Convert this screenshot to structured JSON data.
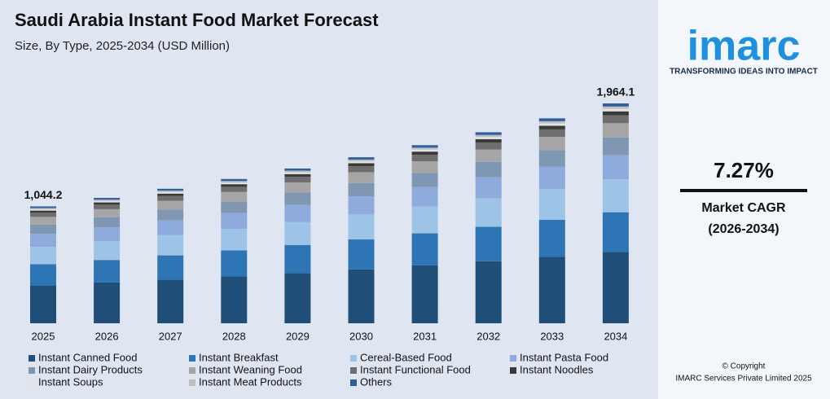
{
  "chart_data": {
    "type": "stacked-bar",
    "title": "Saudi Arabia Instant Food Market Forecast",
    "subtitle": "Size, By Type, 2025-2034 (USD Million)",
    "categories": [
      "2025",
      "2026",
      "2027",
      "2028",
      "2029",
      "2030",
      "2031",
      "2032",
      "2033",
      "2034"
    ],
    "series": [
      {
        "name": "Instant Canned Food",
        "color": "#1f4e79",
        "values": [
          339.3,
          364.0,
          390.5,
          418.9,
          449.3,
          482.0,
          517.0,
          554.6,
          595.0,
          638.3
        ]
      },
      {
        "name": "Instant Breakfast",
        "color": "#2e75b6",
        "values": [
          188.0,
          201.6,
          216.3,
          232.0,
          248.9,
          267.0,
          286.4,
          307.2,
          329.5,
          353.5
        ]
      },
      {
        "name": "Cereal-Based Food",
        "color": "#9dc3e6",
        "values": [
          156.6,
          168.0,
          180.2,
          193.3,
          207.4,
          222.5,
          238.6,
          256.0,
          274.6,
          294.6
        ]
      },
      {
        "name": "Instant Pasta Food",
        "color": "#8faadc",
        "values": [
          114.9,
          123.2,
          132.2,
          141.8,
          152.1,
          163.1,
          175.0,
          187.7,
          201.4,
          216.1
        ]
      },
      {
        "name": "Instant Dairy Products",
        "color": "#7f97b2",
        "values": [
          83.5,
          89.6,
          96.1,
          103.1,
          110.6,
          118.6,
          127.3,
          136.5,
          146.5,
          157.1
        ]
      },
      {
        "name": "Instant Weaning Food",
        "color": "#a6a6a6",
        "values": [
          67.9,
          72.8,
          78.1,
          83.8,
          89.9,
          96.4,
          103.4,
          110.9,
          119.0,
          127.7
        ]
      },
      {
        "name": "Instant Functional Food",
        "color": "#6e6e6e",
        "values": [
          37.6,
          40.3,
          43.3,
          46.4,
          49.8,
          53.4,
          57.3,
          61.4,
          65.9,
          70.7
        ]
      },
      {
        "name": "Instant Noodles",
        "color": "#3a3a3a",
        "values": [
          18.8,
          20.2,
          21.6,
          23.2,
          24.9,
          26.7,
          28.6,
          30.7,
          33.0,
          35.4
        ]
      },
      {
        "name": "Instant Soups",
        "color": "#e4e4e4",
        "values": [
          11.5,
          12.3,
          13.2,
          14.2,
          15.2,
          16.3,
          17.5,
          18.8,
          20.1,
          21.6
        ]
      },
      {
        "name": "Instant Meat Products",
        "color": "#bfbfbf",
        "values": [
          11.5,
          12.3,
          13.2,
          14.2,
          15.2,
          16.3,
          17.5,
          18.8,
          20.1,
          21.6
        ]
      },
      {
        "name": "Others",
        "color": "#2e5f9e",
        "values": [
          14.6,
          15.7,
          16.8,
          18.0,
          19.4,
          20.8,
          22.3,
          23.9,
          25.6,
          27.5
        ]
      }
    ],
    "totals": {
      "values": [
        1044.2,
        null,
        null,
        null,
        null,
        null,
        null,
        null,
        null,
        1964.1
      ],
      "value_labels": [
        "1,044.2",
        null,
        null,
        null,
        null,
        null,
        null,
        null,
        null,
        "1,964.1"
      ]
    }
  },
  "sidebar": {
    "logo": "imarc",
    "tagline": "TRANSFORMING IDEAS INTO IMPACT",
    "cagr": "7.27%",
    "cagr_label": "Market CAGR",
    "cagr_period": "(2026-2034)",
    "copyright": "© Copyright",
    "company": "IMARC Services Private Limited 2025"
  }
}
